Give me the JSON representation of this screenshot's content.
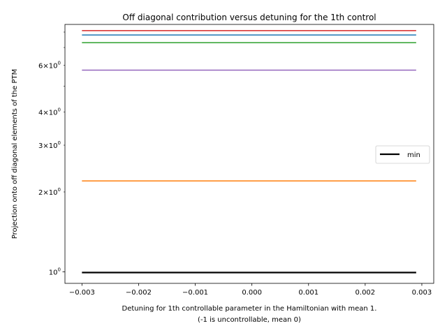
{
  "chart_data": {
    "type": "line",
    "title": "Off diagonal contribution versus detuning for the 1th control",
    "xlabel_line1": "Detuning for 1th controllable parameter in the Hamiltonian with mean 1.",
    "xlabel_line2": "(-1 is uncontrollable, mean 0)",
    "ylabel": "Projection onto off diagonal elements of the PTM",
    "y_scale": "log",
    "xlim": [
      -0.0033,
      0.00321
    ],
    "ylim": [
      0.905,
      8.55
    ],
    "x_ticks": [
      {
        "value": -0.003,
        "label": "−0.003"
      },
      {
        "value": -0.002,
        "label": "−0.002"
      },
      {
        "value": -0.001,
        "label": "−0.001"
      },
      {
        "value": 0.0,
        "label": "0.000"
      },
      {
        "value": 0.001,
        "label": "0.001"
      },
      {
        "value": 0.002,
        "label": "0.002"
      },
      {
        "value": 0.003,
        "label": "0.003"
      }
    ],
    "y_ticks_major": [
      {
        "value": 1,
        "base": "10",
        "exp": "0"
      }
    ],
    "y_ticks_minor": [
      {
        "value": 2,
        "mant": "2",
        "base": "10",
        "exp": "0"
      },
      {
        "value": 3,
        "mant": "3",
        "base": "10",
        "exp": "0"
      },
      {
        "value": 4,
        "mant": "4",
        "base": "10",
        "exp": "0"
      },
      {
        "value": 5,
        "mant": "",
        "base": "",
        "exp": ""
      },
      {
        "value": 6,
        "mant": "6",
        "base": "10",
        "exp": "0"
      },
      {
        "value": 7,
        "mant": "",
        "base": "",
        "exp": ""
      },
      {
        "value": 8,
        "mant": "",
        "base": "",
        "exp": ""
      }
    ],
    "x": [
      -0.003,
      0.0029
    ],
    "series": [
      {
        "color": "#d62728",
        "width": 1.5,
        "values": [
          8.1,
          8.1
        ]
      },
      {
        "color": "#1f77b4",
        "width": 1.5,
        "values": [
          7.8,
          7.8
        ]
      },
      {
        "color": "#2ca02c",
        "width": 1.5,
        "values": [
          7.3,
          7.3
        ]
      },
      {
        "color": "#9467bd",
        "width": 1.5,
        "values": [
          5.75,
          5.75
        ]
      },
      {
        "color": "#ff7f0e",
        "width": 1.5,
        "values": [
          2.2,
          2.2
        ]
      },
      {
        "name": "min",
        "color": "#000000",
        "width": 2.2,
        "values": [
          0.994,
          0.994
        ]
      }
    ],
    "legend": {
      "placement": "center-right",
      "entries": [
        "min"
      ]
    },
    "grid": false
  }
}
